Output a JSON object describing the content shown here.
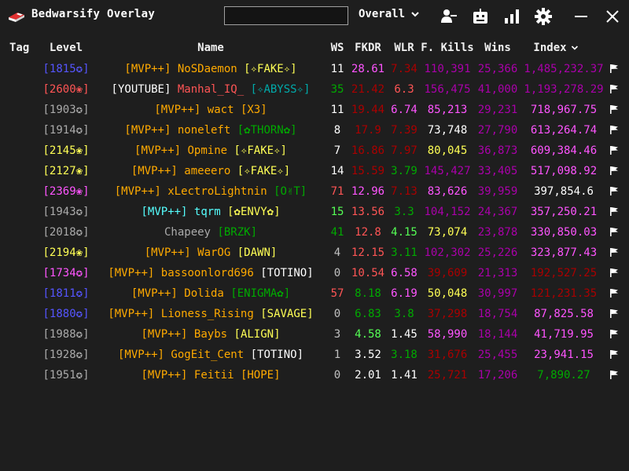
{
  "app": {
    "title": "Bedwarsify Overlay"
  },
  "search": {
    "value": "",
    "placeholder": ""
  },
  "mode": {
    "selected": "Overall"
  },
  "headers": {
    "tag": "Tag",
    "level": "Level",
    "name": "Name",
    "ws": "WS",
    "fkdr": "FKDR",
    "wlr": "WLR",
    "fkills": "F. Kills",
    "wins": "Wins",
    "index": "Index"
  },
  "colors": {
    "white": "#ffffff",
    "gray": "#c0c0c0",
    "gold": "#ffaa00",
    "pink": "#ff55ff",
    "red": "#aa0000",
    "lightred": "#ff5555",
    "green": "#00aa00",
    "lime": "#55ff55",
    "aqua": "#55ffff",
    "darkaqua": "#00aaaa",
    "yellow": "#ffff55",
    "blue": "#5555ff",
    "purple": "#aa00aa",
    "lightgray": "#aaaaaa"
  },
  "players": [
    {
      "level": "[1815✪]",
      "rank": "[MVP++]",
      "name": "NoSDaemon",
      "guild": "[✧FAKE✧]",
      "ws": "11",
      "fkdr": "28.61",
      "wlr": "7.34",
      "fkills": "110,391",
      "wins": "25,366",
      "index": "1,485,232.37"
    },
    {
      "level": "[2600❀]",
      "rank": "[YOUTUBE]",
      "name": "Manhal_IQ_",
      "guild": "[✧ABYSS✧]",
      "ws": "35",
      "fkdr": "21.42",
      "wlr": "6.3",
      "fkills": "156,475",
      "wins": "41,000",
      "index": "1,193,278.29"
    },
    {
      "level": "[1903✪]",
      "rank": "[MVP++]",
      "name": "wact",
      "guild": "[X3]",
      "ws": "11",
      "fkdr": "19.44",
      "wlr": "6.74",
      "fkills": "85,213",
      "wins": "29,231",
      "index": "718,967.75"
    },
    {
      "level": "[1914✪]",
      "rank": "[MVP++]",
      "name": "noneleft",
      "guild": "[✿THORN✿]",
      "ws": "8",
      "fkdr": "17.9",
      "wlr": "7.39",
      "fkills": "73,748",
      "wins": "27,790",
      "index": "613,264.74"
    },
    {
      "level": "[2145❀]",
      "rank": "[MVP++]",
      "name": "Opmine",
      "guild": "[✧FAKE✧]",
      "ws": "7",
      "fkdr": "16.86",
      "wlr": "7.97",
      "fkills": "80,045",
      "wins": "36,873",
      "index": "609,384.46"
    },
    {
      "level": "[2127❀]",
      "rank": "[MVP++]",
      "name": "ameeero",
      "guild": "[✧FAKE✧]",
      "ws": "14",
      "fkdr": "15.59",
      "wlr": "3.79",
      "fkills": "145,427",
      "wins": "33,405",
      "index": "517,098.92"
    },
    {
      "level": "[2369❀]",
      "rank": "[MVP++]",
      "name": "xLectroLightnin",
      "guild": "[O✌T]",
      "ws": "71",
      "fkdr": "12.96",
      "wlr": "7.13",
      "fkills": "83,626",
      "wins": "39,959",
      "index": "397,854.6"
    },
    {
      "level": "[1943✪]",
      "rank": "[MVP++]",
      "name": "tqrm",
      "guild": "[✿ENVY✿]",
      "ws": "15",
      "fkdr": "13.56",
      "wlr": "3.3",
      "fkills": "104,152",
      "wins": "24,367",
      "index": "357,250.21"
    },
    {
      "level": "[2018✪]",
      "rank": "",
      "name": "Chapeey",
      "guild": "[BRZK]",
      "ws": "41",
      "fkdr": "12.8",
      "wlr": "4.15",
      "fkills": "73,074",
      "wins": "23,878",
      "index": "330,850.03"
    },
    {
      "level": "[2194❀]",
      "rank": "[MVP++]",
      "name": "WarOG",
      "guild": "[DAWN]",
      "ws": "4",
      "fkdr": "12.15",
      "wlr": "3.11",
      "fkills": "102,302",
      "wins": "25,226",
      "index": "323,877.43"
    },
    {
      "level": "[1734✪]",
      "rank": "[MVP++]",
      "name": "bassoonlord696",
      "guild": "[TOTINO]",
      "ws": "0",
      "fkdr": "10.54",
      "wlr": "6.58",
      "fkills": "39,609",
      "wins": "21,313",
      "index": "192,527.25"
    },
    {
      "level": "[1811✪]",
      "rank": "[MVP++]",
      "name": "Dolida",
      "guild": "[ENIGMA✿]",
      "ws": "57",
      "fkdr": "8.18",
      "wlr": "6.19",
      "fkills": "50,048",
      "wins": "30,997",
      "index": "121,231.35"
    },
    {
      "level": "[1880✪]",
      "rank": "[MVP++]",
      "name": "Lioness_Rising",
      "guild": "[SAVAGE]",
      "ws": "0",
      "fkdr": "6.83",
      "wlr": "3.8",
      "fkills": "37,298",
      "wins": "18,754",
      "index": "87,825.58"
    },
    {
      "level": "[1988✪]",
      "rank": "[MVP++]",
      "name": "Baybs",
      "guild": "[ALIGN]",
      "ws": "3",
      "fkdr": "4.58",
      "wlr": "1.45",
      "fkills": "58,990",
      "wins": "18,144",
      "index": "41,719.95"
    },
    {
      "level": "[1928✪]",
      "rank": "[MVP++]",
      "name": "GogEit_Cent",
      "guild": "[TOTINO]",
      "ws": "1",
      "fkdr": "3.52",
      "wlr": "3.18",
      "fkills": "31,676",
      "wins": "25,455",
      "index": "23,941.15"
    },
    {
      "level": "[1951✪]",
      "rank": "[MVP++]",
      "name": "Feitii",
      "guild": "[HOPE]",
      "ws": "0",
      "fkdr": "2.01",
      "wlr": "1.41",
      "fkills": "25,721",
      "wins": "17,206",
      "index": "7,890.27"
    }
  ]
}
